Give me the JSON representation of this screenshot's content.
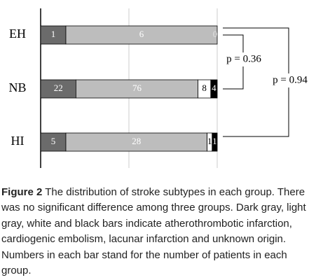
{
  "chart_data": {
    "type": "stacked-bar-percent",
    "categories": [
      "EH",
      "NB",
      "HI"
    ],
    "series": [
      {
        "color": "#6b6b6b",
        "label_color": "#ffffff",
        "values": [
          1,
          22,
          5
        ]
      },
      {
        "color": "#bdbdbd",
        "label_color": "#ffffff",
        "values": [
          6,
          76,
          28
        ]
      },
      {
        "color": "#ffffff",
        "label_color": "#000000",
        "values": [
          0,
          8,
          1
        ]
      },
      {
        "color": "#000000",
        "label_color": "#ffffff",
        "values": [
          0,
          4,
          1
        ]
      }
    ],
    "annotations": [
      "p = 0.36",
      "p = 0.94"
    ]
  },
  "caption": {
    "label": "Figure 2",
    "text": "The distribution of stroke subtypes in each group. There was no significant difference among three groups. Dark gray, light gray, white and black bars indicate atherothrombotic infarction, cardiogenic embolism, lacunar infarction and unknown origin. Numbers in each bar stand for the number of patients in each group."
  }
}
